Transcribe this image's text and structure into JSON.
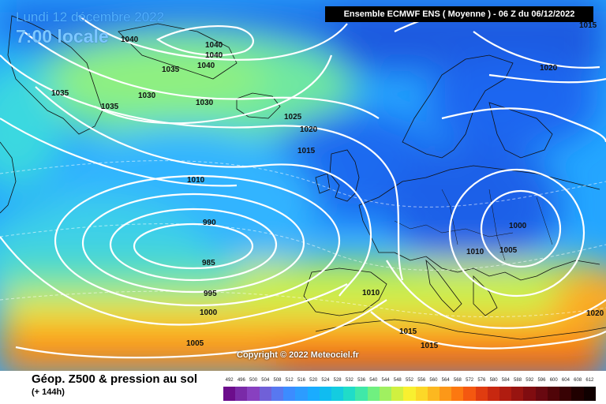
{
  "header": {
    "date_label": "Lundi 12 décembre 2022",
    "time_label": "7:00 locale",
    "model_label": "Ensemble ECMWF ENS  ( Moyenne )  -  06 Z du 06/12/2022"
  },
  "map": {
    "copyright": "Copyright © 2022 Meteociel.fr",
    "isobar_labels": [
      "1040",
      "1040",
      "1040",
      "1040",
      "1035",
      "1035",
      "1035",
      "1030",
      "1030",
      "1025",
      "1020",
      "1015",
      "1010",
      "990",
      "985",
      "995",
      "1000",
      "1005",
      "1010",
      "1015",
      "1015",
      "1020",
      "1015",
      "1010",
      "1005",
      "1000",
      "1020"
    ]
  },
  "footer": {
    "title": "Géop. Z500 & pression au sol",
    "subtitle": "(+ 144h)"
  },
  "legend": {
    "labels": [
      "492",
      "496",
      "500",
      "504",
      "508",
      "512",
      "516",
      "520",
      "524",
      "528",
      "532",
      "536",
      "540",
      "544",
      "548",
      "552",
      "556",
      "560",
      "564",
      "568",
      "572",
      "576",
      "580",
      "584",
      "588",
      "592",
      "596",
      "600",
      "604",
      "608",
      "612"
    ],
    "colors": [
      "#6c0d8c",
      "#7a2aa8",
      "#8840c0",
      "#7060d8",
      "#5878f0",
      "#3c8cff",
      "#2c9cff",
      "#1aacff",
      "#10bcf0",
      "#14cce0",
      "#20dcc8",
      "#40e8a8",
      "#70f080",
      "#a0f060",
      "#d0f040",
      "#f8f030",
      "#fcd828",
      "#fcb820",
      "#fc9818",
      "#fc7810",
      "#f45810",
      "#e03c10",
      "#c82810",
      "#b01c10",
      "#981410",
      "#800c10",
      "#680810",
      "#500408",
      "#380204",
      "#200000",
      "#100000"
    ]
  }
}
